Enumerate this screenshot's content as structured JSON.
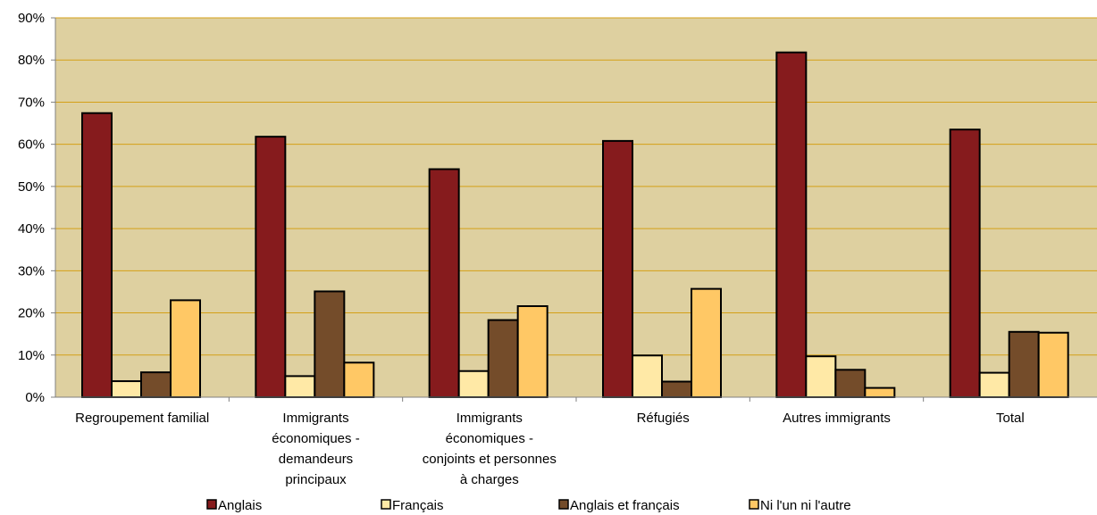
{
  "chart_data": {
    "type": "bar",
    "categories": [
      [
        "Regroupement familial"
      ],
      [
        "Immigrants",
        "économiques -",
        "demandeurs",
        "principaux"
      ],
      [
        "Immigrants",
        "économiques -",
        "conjoints et personnes",
        "à charges"
      ],
      [
        "Réfugiés"
      ],
      [
        "Autres immigrants"
      ],
      [
        "Total"
      ]
    ],
    "series": [
      {
        "name": "Anglais",
        "color": "#861b1d",
        "values": [
          67.4,
          61.8,
          54.1,
          60.8,
          81.8,
          63.5
        ]
      },
      {
        "name": "Français",
        "color": "#ffe9a6",
        "values": [
          3.8,
          5.0,
          6.2,
          9.9,
          9.7,
          5.8
        ]
      },
      {
        "name": "Anglais et français",
        "color": "#744c2a",
        "values": [
          5.9,
          25.1,
          18.3,
          3.7,
          6.5,
          15.5
        ]
      },
      {
        "name": "Ni l'un ni l'autre",
        "color": "#ffc865",
        "values": [
          23.0,
          8.2,
          21.6,
          25.7,
          2.2,
          15.3
        ]
      }
    ],
    "ylim": [
      0,
      90
    ],
    "yticks": [
      "0%",
      "10%",
      "20%",
      "30%",
      "40%",
      "50%",
      "60%",
      "70%",
      "80%",
      "90%"
    ],
    "grid": true,
    "legend_position": "bottom",
    "plot_background": "#ded0a0",
    "gridline_color": "#d4a017"
  }
}
